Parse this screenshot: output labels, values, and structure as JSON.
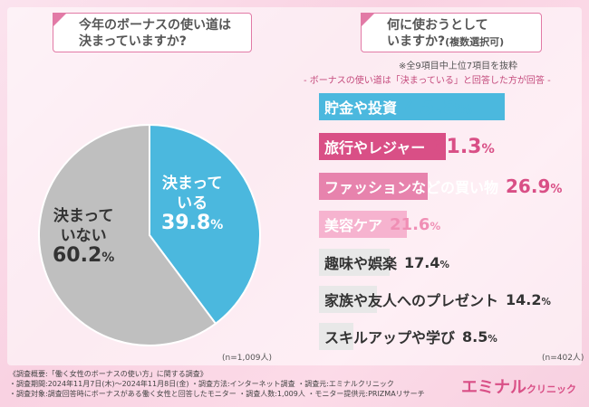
{
  "q1": {
    "line1": "今年のボーナスの使い道は",
    "line2": "決まっていますか?"
  },
  "q2": {
    "line1": "何に使おうとして",
    "line2": "いますか?",
    "line2_small": "(複数選択可)"
  },
  "note1": "※全9項目中上位7項目を抜粋",
  "note2": "- ボーナスの使い道は「決まっている」と回答した方が回答 -",
  "chart_data": [
    {
      "type": "pie",
      "slices": [
        {
          "label": "決まっている",
          "value": 39.8,
          "color": "#4bb8de",
          "line1": "決まって",
          "line2": "いる",
          "pct": "39.8",
          "pct_unit": "%"
        },
        {
          "label": "決まっていない",
          "value": 60.2,
          "color": "#bfbfbf",
          "line1": "決まって",
          "line2": "いない",
          "pct": "60.2",
          "pct_unit": "%"
        }
      ],
      "n": "(n=1,009人)"
    },
    {
      "type": "bar",
      "categories": [
        "貯金や投資",
        "旅行やレジャー",
        "ファッションなどの買い物",
        "美容ケア",
        "趣味や娯楽",
        "家族や友人へのプレゼント",
        "スキルアップや学び"
      ],
      "values": [
        45.8,
        31.3,
        26.9,
        21.6,
        17.4,
        14.2,
        8.5
      ],
      "unit": "%",
      "xlim": [
        0,
        45.8
      ],
      "n": "(n=402人)"
    }
  ],
  "footer": {
    "line1": "《調査概要:「働く女性のボーナスの使い方」に関する調査》",
    "line2": "・調査期間:2024年11月7日(木)〜2024年11月8日(金)  ・調査方法:インターネット調査  ・調査元:エミナルクリニック",
    "line3": "・調査対象:調査回答時にボーナスがある働く女性と回答したモニター  ・調査人数:1,009人  ・モニター提供元:PRIZMAリサーチ"
  },
  "brand": {
    "main": "エミナル",
    "sub": "クリニック"
  }
}
